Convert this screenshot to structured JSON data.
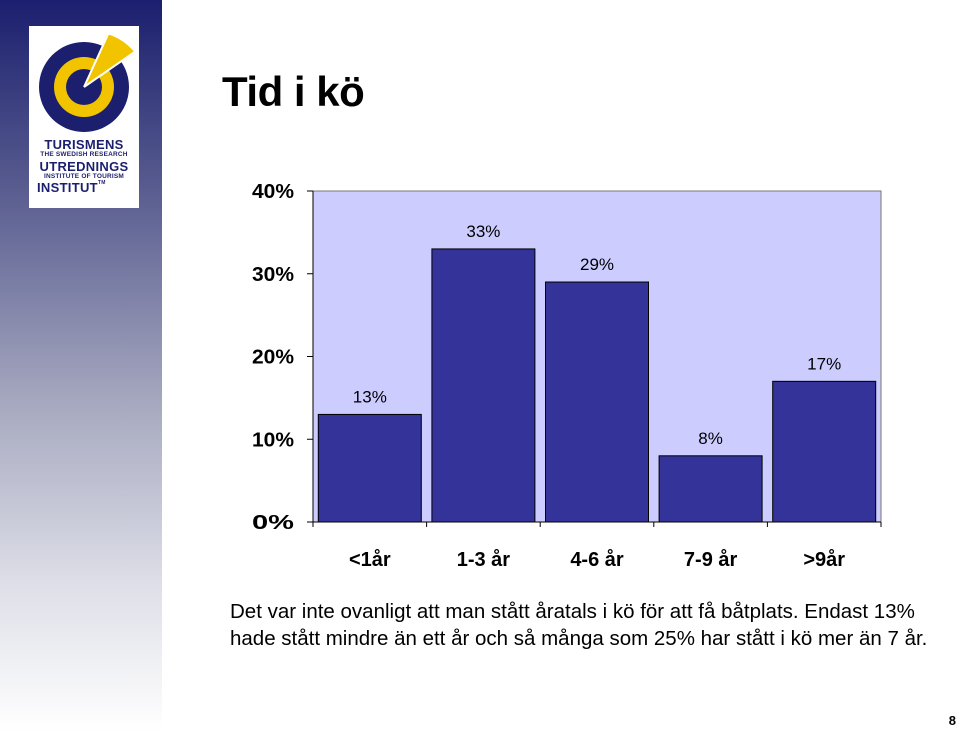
{
  "title": "Tid i kö",
  "logo": {
    "line1": "TURISMENS",
    "line2": "THE SWEDISH RESEARCH",
    "line3": "UTREDNINGS",
    "line4": "INSTITUTE OF TOURISM",
    "line5": "INSTITUT",
    "trademark": "TM"
  },
  "chart_data": {
    "type": "bar",
    "categories": [
      "<1år",
      "1-3 år",
      "4-6 år",
      "7-9 år",
      ">9år"
    ],
    "values": [
      13,
      33,
      29,
      8,
      17
    ],
    "value_labels": [
      "13%",
      "33%",
      "29%",
      "8%",
      "17%"
    ],
    "y_ticks": [
      {
        "value": 0,
        "label": "0%"
      },
      {
        "value": 10,
        "label": "10%"
      },
      {
        "value": 20,
        "label": "20%"
      },
      {
        "value": 30,
        "label": "30%"
      },
      {
        "value": 40,
        "label": "40%"
      }
    ],
    "ylim": [
      0,
      40
    ],
    "grid": false,
    "colors": {
      "plot_bg": "#ccccff",
      "bar": "#333399",
      "bar_stroke": "#000000"
    }
  },
  "caption": "Det var inte ovanligt att man stått åratals i kö för att få båtplats. Endast 13% hade stått mindre än ett år och så många som 25% har stått i kö mer än 7 år.",
  "page_number": "8"
}
